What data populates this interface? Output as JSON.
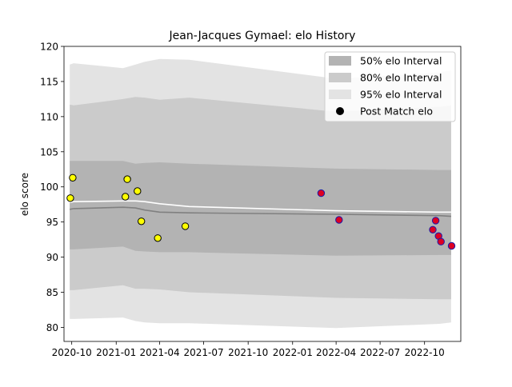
{
  "chart_data": {
    "type": "line",
    "title": "Jean-Jacques Gymael: elo History",
    "xlabel": "",
    "ylabel": "elo score",
    "xlim": [
      "2020-09-15",
      "2022-12-15"
    ],
    "ylim": [
      78,
      120
    ],
    "x_ticks": [
      "2020-10",
      "2021-01",
      "2021-04",
      "2021-07",
      "2021-10",
      "2022-01",
      "2022-04",
      "2022-07",
      "2022-10"
    ],
    "y_ticks": [
      80,
      85,
      90,
      95,
      100,
      105,
      110,
      115,
      120
    ],
    "grid": false,
    "legend_position": "top-right",
    "legend": [
      "50% elo Interval",
      "80% elo Interval",
      "95% elo Interval",
      "Post Match elo"
    ],
    "band_dates": [
      "2020-09-27",
      "2020-10-05",
      "2021-01-15",
      "2021-02-10",
      "2021-03-01",
      "2021-04-01",
      "2021-06-01",
      "2022-04-01",
      "2022-11-01",
      "2022-11-25"
    ],
    "median": [
      96.8,
      96.9,
      97.1,
      97.0,
      96.7,
      96.4,
      96.3,
      96.1,
      95.9,
      95.8
    ],
    "mean": [
      97.8,
      97.9,
      98.0,
      98.0,
      97.9,
      97.6,
      97.2,
      96.6,
      96.4,
      96.4
    ],
    "intervals": [
      {
        "name": "95% elo Interval",
        "lower": [
          81.2,
          81.2,
          81.4,
          80.9,
          80.7,
          80.6,
          80.6,
          79.9,
          80.5,
          80.7
        ],
        "upper": [
          117.4,
          117.6,
          116.9,
          117.4,
          117.8,
          118.2,
          118.1,
          115.4,
          116.3,
          116.6
        ]
      },
      {
        "name": "80% elo Interval",
        "lower": [
          85.3,
          85.3,
          86.0,
          85.5,
          85.5,
          85.4,
          85.0,
          84.2,
          84.0,
          84.0
        ],
        "upper": [
          111.7,
          111.6,
          112.5,
          112.8,
          112.7,
          112.4,
          112.7,
          110.7,
          111.4,
          111.6
        ]
      },
      {
        "name": "50% elo Interval",
        "lower": [
          91.1,
          91.1,
          91.5,
          90.9,
          90.8,
          90.7,
          90.7,
          90.2,
          90.3,
          90.3
        ],
        "upper": [
          103.7,
          103.7,
          103.7,
          103.3,
          103.4,
          103.5,
          103.3,
          102.6,
          102.4,
          102.4
        ]
      }
    ],
    "series": [
      {
        "name": "Post Match elo",
        "x": [
          "2020-09-28",
          "2020-10-03",
          "2021-01-20",
          "2021-01-24",
          "2021-02-14",
          "2021-02-22",
          "2021-03-28",
          "2021-05-24",
          "2022-03-01",
          "2022-04-07",
          "2022-10-18",
          "2022-10-24",
          "2022-10-30",
          "2022-11-04",
          "2022-11-26"
        ],
        "y": [
          98.4,
          101.3,
          98.6,
          101.1,
          99.4,
          95.1,
          92.7,
          94.4,
          99.1,
          95.3,
          93.9,
          95.2,
          93.0,
          92.2,
          91.6
        ],
        "colors": [
          "#ffff00",
          "#ffff00",
          "#ffff00",
          "#ffff00",
          "#ffff00",
          "#ffff00",
          "#ffff00",
          "#ffff00",
          "#dd0022",
          "#dd0022",
          "#dd0022",
          "#dd0022",
          "#dd0022",
          "#dd0022",
          "#dd0022"
        ]
      }
    ],
    "colors": {
      "band_95": "#e3e3e3",
      "band_80": "#cbcbcb",
      "band_50": "#b3b3b3",
      "median_line": "#808080",
      "mean_line": "#ffffff",
      "point_edge_early": "#000000",
      "point_edge_late": "#1a1aaa"
    }
  }
}
